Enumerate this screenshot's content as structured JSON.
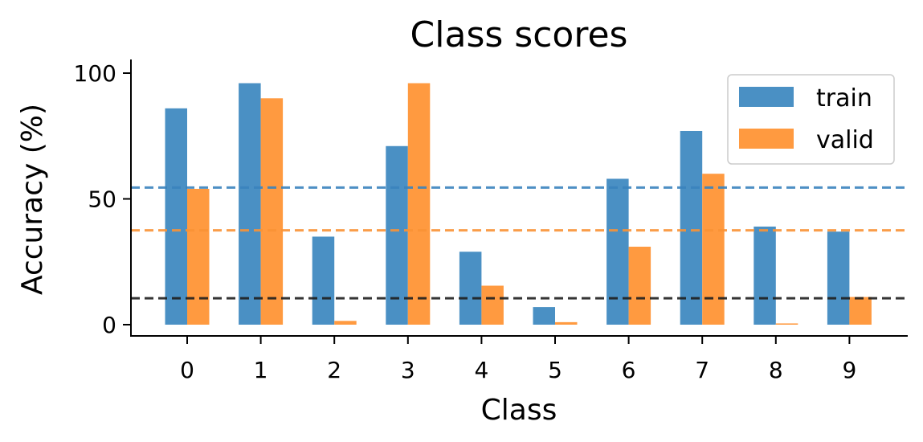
{
  "chart_data": {
    "type": "bar",
    "title": "Class scores",
    "xlabel": "Class",
    "ylabel": "Accuracy (%)",
    "categories": [
      "0",
      "1",
      "2",
      "3",
      "4",
      "5",
      "6",
      "7",
      "8",
      "9"
    ],
    "series": [
      {
        "name": "train",
        "color": "#4a90c4",
        "values": [
          86,
          96,
          35,
          71,
          29,
          7,
          58,
          77,
          39,
          37
        ]
      },
      {
        "name": "valid",
        "color": "#ff9a40",
        "values": [
          54,
          90,
          1.5,
          96,
          15.5,
          1,
          31,
          60,
          0.5,
          11
        ]
      }
    ],
    "ylim": [
      -4,
      105
    ],
    "yticks": [
      0,
      50,
      100
    ],
    "reference_lines": [
      {
        "value": 54.5,
        "color": "#3a83be"
      },
      {
        "value": 37.5,
        "color": "#f99235"
      },
      {
        "value": 10.5,
        "color": "#1f1f1f"
      }
    ],
    "legend": {
      "position": "top-right",
      "entries": [
        "train",
        "valid"
      ]
    },
    "grid": false
  }
}
